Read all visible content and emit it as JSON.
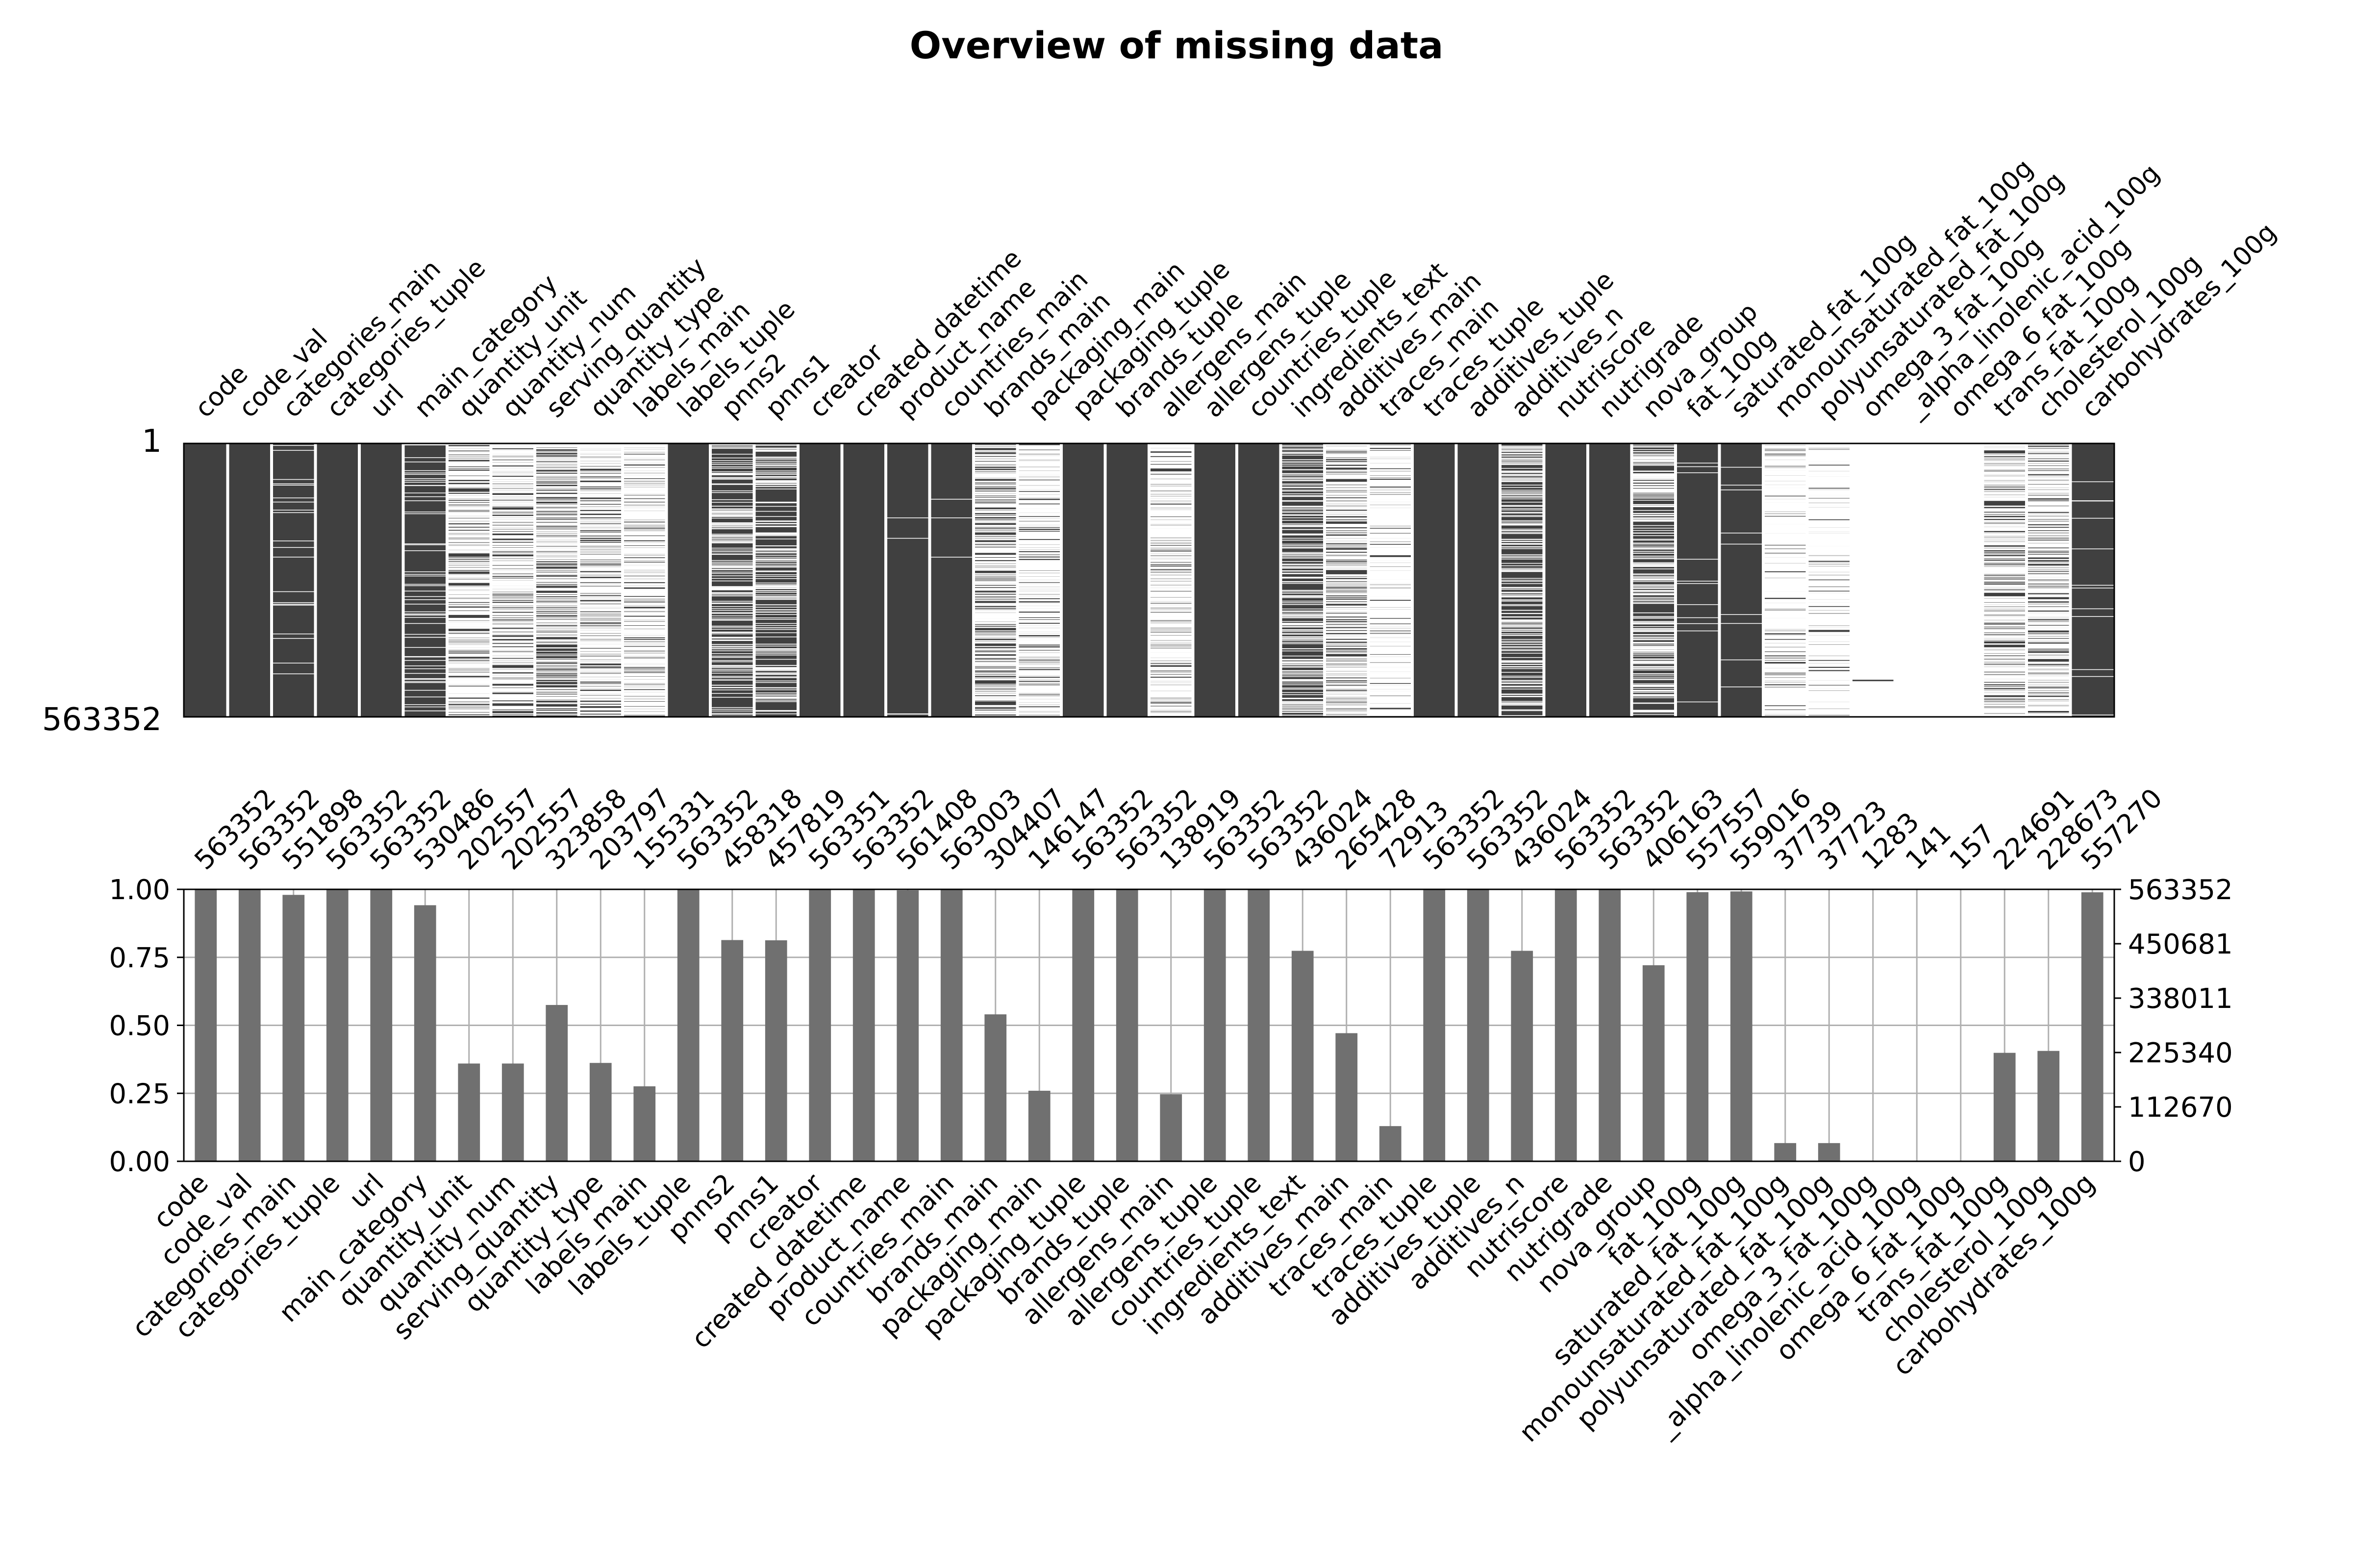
{
  "chart_data": [
    {
      "type": "heatmap",
      "title": "Overview of missing data",
      "y_tick_labels": [
        "1",
        "563352"
      ],
      "total_rows": 563352,
      "cell_colors": {
        "present": "#404040",
        "missing": "#ffffff"
      },
      "columns": [
        "code",
        "code_val",
        "categories_main",
        "categories_tuple",
        "url",
        "main_category",
        "quantity_unit",
        "quantity_num",
        "serving_quantity",
        "quantity_type",
        "labels_main",
        "labels_tuple",
        "pnns2",
        "pnns1",
        "creator",
        "created_datetime",
        "product_name",
        "countries_main",
        "brands_main",
        "packaging_main",
        "packaging_tuple",
        "brands_tuple",
        "allergens_main",
        "allergens_tuple",
        "countries_tuple",
        "ingredients_text",
        "additives_main",
        "traces_main",
        "traces_tuple",
        "additives_tuple",
        "additives_n",
        "nutriscore",
        "nutrigrade",
        "nova_group",
        "fat_100g",
        "saturated_fat_100g",
        "monounsaturated_fat_100g",
        "polyunsaturated_fat_100g",
        "omega_3_fat_100g",
        "_alpha_linolenic_acid_100g",
        "omega_6_fat_100g",
        "trans_fat_100g",
        "cholesterol_100g",
        "carbohydrates_100g"
      ],
      "non_missing_counts": [
        563352,
        563352,
        551898,
        563352,
        563352,
        530486,
        202557,
        202557,
        323858,
        203797,
        155331,
        563352,
        458318,
        457819,
        563351,
        563352,
        561408,
        563003,
        304407,
        146147,
        563352,
        563352,
        138919,
        563352,
        563352,
        436024,
        265428,
        72913,
        563352,
        563352,
        436024,
        563352,
        563352,
        406163,
        557557,
        559016,
        37739,
        37723,
        1283,
        141,
        157,
        224691,
        228673,
        557270
      ]
    },
    {
      "type": "bar",
      "categories": [
        "code",
        "code_val",
        "categories_main",
        "categories_tuple",
        "url",
        "main_category",
        "quantity_unit",
        "quantity_num",
        "serving_quantity",
        "quantity_type",
        "labels_main",
        "labels_tuple",
        "pnns2",
        "pnns1",
        "creator",
        "created_datetime",
        "product_name",
        "countries_main",
        "brands_main",
        "packaging_main",
        "packaging_tuple",
        "brands_tuple",
        "allergens_main",
        "allergens_tuple",
        "countries_tuple",
        "ingredients_text",
        "additives_main",
        "traces_main",
        "traces_tuple",
        "additives_tuple",
        "additives_n",
        "nutriscore",
        "nutrigrade",
        "nova_group",
        "fat_100g",
        "saturated_fat_100g",
        "monounsaturated_fat_100g",
        "polyunsaturated_fat_100g",
        "omega_3_fat_100g",
        "_alpha_linolenic_acid_100g",
        "omega_6_fat_100g",
        "trans_fat_100g",
        "cholesterol_100g",
        "carbohydrates_100g"
      ],
      "values": [
        563352,
        563352,
        551898,
        563352,
        563352,
        530486,
        202557,
        202557,
        323858,
        203797,
        155331,
        563352,
        458318,
        457819,
        563351,
        563352,
        561408,
        563003,
        304407,
        146147,
        563352,
        563352,
        138919,
        563352,
        563352,
        436024,
        265428,
        72913,
        563352,
        563352,
        436024,
        563352,
        563352,
        406163,
        557557,
        559016,
        37739,
        37723,
        1283,
        141,
        157,
        224691,
        228673,
        557270
      ],
      "top_labels": [
        "563352",
        "563352",
        "551898",
        "563352",
        "563352",
        "530486",
        "202557",
        "202557",
        "323858",
        "203797",
        "155331",
        "563352",
        "458318",
        "457819",
        "563351",
        "563352",
        "561408",
        "563003",
        "304407",
        "146147",
        "563352",
        "563352",
        "138919",
        "563352",
        "563352",
        "436024",
        "265428",
        "72913",
        "563352",
        "563352",
        "436024",
        "563352",
        "563352",
        "406163",
        "557557",
        "559016",
        "37739",
        "37723",
        "1283",
        "141",
        "157",
        "224691",
        "228673",
        "557270"
      ],
      "total": 563352,
      "ylim": [
        0,
        1
      ],
      "y_left_ticks": [
        "0.00",
        "0.25",
        "0.50",
        "0.75",
        "1.00"
      ],
      "y_right_ticks": [
        "0",
        "112670",
        "225340",
        "338011",
        "450681",
        "563352"
      ],
      "grid": true,
      "bar_color": "#707070"
    }
  ]
}
